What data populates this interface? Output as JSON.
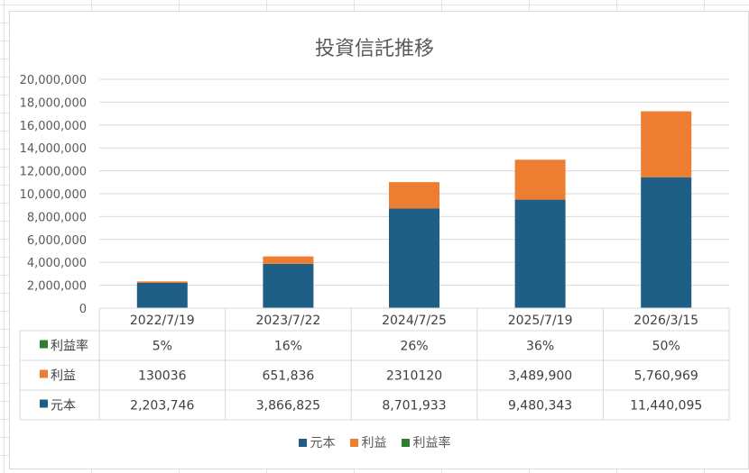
{
  "chart_data": {
    "type": "bar",
    "stacked": true,
    "title": "投資信託推移",
    "categories": [
      "2022/7/19",
      "2023/7/22",
      "2024/7/25",
      "2025/7/19",
      "2026/3/15"
    ],
    "series": [
      {
        "name": "元本",
        "color": "#1f5f86",
        "values": [
          2203746,
          3866825,
          8701933,
          9480343,
          11440095
        ]
      },
      {
        "name": "利益",
        "color": "#ed7d31",
        "values": [
          130036,
          651836,
          2310120,
          3489900,
          5760969
        ]
      },
      {
        "name": "利益率",
        "color": "#2e7d32",
        "values": [
          5,
          16,
          26,
          36,
          50
        ]
      }
    ],
    "ylim": [
      0,
      20000000
    ],
    "yticks": [
      "20,000,000",
      "18,000,000",
      "16,000,000",
      "14,000,000",
      "12,000,000",
      "10,000,000",
      "8,000,000",
      "6,000,000",
      "4,000,000",
      "2,000,000",
      "0"
    ],
    "ytick_values": [
      20000000,
      18000000,
      16000000,
      14000000,
      12000000,
      10000000,
      8000000,
      6000000,
      4000000,
      2000000,
      0
    ],
    "grid": true,
    "legend_position": "bottom",
    "data_table": {
      "rows": [
        {
          "label": "利益率",
          "color": "#2e7d32",
          "cells": [
            "5%",
            "16%",
            "26%",
            "36%",
            "50%"
          ]
        },
        {
          "label": "利益",
          "color": "#ed7d31",
          "cells": [
            "130036",
            "651,836",
            "2310120",
            "3,489,900",
            "5,760,969"
          ]
        },
        {
          "label": "元本",
          "color": "#1f5f86",
          "cells": [
            "2,203,746",
            "3,866,825",
            "8,701,933",
            "9,480,343",
            "11,440,095"
          ]
        }
      ]
    }
  }
}
